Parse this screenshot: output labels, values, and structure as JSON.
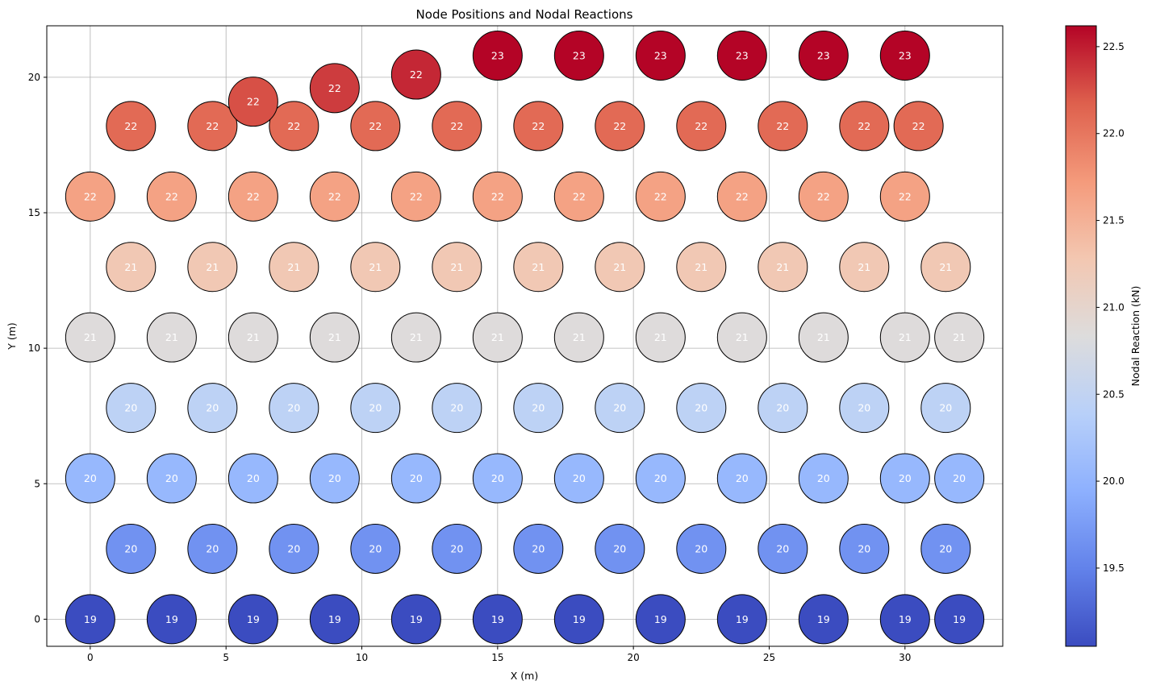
{
  "chart_data": {
    "type": "scatter",
    "title": "Node Positions and Nodal Reactions",
    "xlabel": "X (m)",
    "ylabel": "Y (m)",
    "xlim": [
      -1.6,
      33.6
    ],
    "ylim": [
      -1.0,
      21.9
    ],
    "xticks": [
      0,
      5,
      10,
      15,
      20,
      25,
      30
    ],
    "yticks": [
      0,
      5,
      10,
      15,
      20
    ],
    "grid": true,
    "colorbar": {
      "label": "Nodal Reaction (kN)",
      "range": [
        19.05,
        22.62
      ],
      "ticks": [
        "19.5",
        "20.0",
        "20.5",
        "21.0",
        "21.5",
        "22.0",
        "22.5"
      ],
      "tick_values": [
        19.5,
        20.0,
        20.5,
        21.0,
        21.5,
        22.0,
        22.5
      ],
      "colormap": "coolwarm",
      "colors": [
        "#3b4cc0",
        "#6282ea",
        "#8db0fe",
        "#b8d0f9",
        "#dddcdc",
        "#f3c7b1",
        "#f49a7b",
        "#de604d",
        "#b40426"
      ]
    },
    "points": [
      {
        "x": 0,
        "y": 0,
        "value": 19.05,
        "label": "19"
      },
      {
        "x": 3,
        "y": 0,
        "value": 19.05,
        "label": "19"
      },
      {
        "x": 6,
        "y": 0,
        "value": 19.05,
        "label": "19"
      },
      {
        "x": 9,
        "y": 0,
        "value": 19.05,
        "label": "19"
      },
      {
        "x": 12,
        "y": 0,
        "value": 19.05,
        "label": "19"
      },
      {
        "x": 15,
        "y": 0,
        "value": 19.05,
        "label": "19"
      },
      {
        "x": 18,
        "y": 0,
        "value": 19.05,
        "label": "19"
      },
      {
        "x": 21,
        "y": 0,
        "value": 19.05,
        "label": "19"
      },
      {
        "x": 24,
        "y": 0,
        "value": 19.05,
        "label": "19"
      },
      {
        "x": 27,
        "y": 0,
        "value": 19.05,
        "label": "19"
      },
      {
        "x": 30,
        "y": 0,
        "value": 19.05,
        "label": "19"
      },
      {
        "x": 32,
        "y": 0,
        "value": 19.05,
        "label": "19"
      },
      {
        "x": 1.5,
        "y": 2.6,
        "value": 19.65,
        "label": "20"
      },
      {
        "x": 4.5,
        "y": 2.6,
        "value": 19.65,
        "label": "20"
      },
      {
        "x": 7.5,
        "y": 2.6,
        "value": 19.65,
        "label": "20"
      },
      {
        "x": 10.5,
        "y": 2.6,
        "value": 19.65,
        "label": "20"
      },
      {
        "x": 13.5,
        "y": 2.6,
        "value": 19.65,
        "label": "20"
      },
      {
        "x": 16.5,
        "y": 2.6,
        "value": 19.65,
        "label": "20"
      },
      {
        "x": 19.5,
        "y": 2.6,
        "value": 19.65,
        "label": "20"
      },
      {
        "x": 22.5,
        "y": 2.6,
        "value": 19.65,
        "label": "20"
      },
      {
        "x": 25.5,
        "y": 2.6,
        "value": 19.65,
        "label": "20"
      },
      {
        "x": 28.5,
        "y": 2.6,
        "value": 19.65,
        "label": "20"
      },
      {
        "x": 31.5,
        "y": 2.6,
        "value": 19.65,
        "label": "20"
      },
      {
        "x": 0,
        "y": 5.2,
        "value": 20.05,
        "label": "20"
      },
      {
        "x": 3,
        "y": 5.2,
        "value": 20.05,
        "label": "20"
      },
      {
        "x": 6,
        "y": 5.2,
        "value": 20.05,
        "label": "20"
      },
      {
        "x": 9,
        "y": 5.2,
        "value": 20.05,
        "label": "20"
      },
      {
        "x": 12,
        "y": 5.2,
        "value": 20.05,
        "label": "20"
      },
      {
        "x": 15,
        "y": 5.2,
        "value": 20.05,
        "label": "20"
      },
      {
        "x": 18,
        "y": 5.2,
        "value": 20.05,
        "label": "20"
      },
      {
        "x": 21,
        "y": 5.2,
        "value": 20.05,
        "label": "20"
      },
      {
        "x": 24,
        "y": 5.2,
        "value": 20.05,
        "label": "20"
      },
      {
        "x": 27,
        "y": 5.2,
        "value": 20.05,
        "label": "20"
      },
      {
        "x": 30,
        "y": 5.2,
        "value": 20.05,
        "label": "20"
      },
      {
        "x": 32,
        "y": 5.2,
        "value": 20.05,
        "label": "20"
      },
      {
        "x": 1.5,
        "y": 7.8,
        "value": 20.45,
        "label": "20"
      },
      {
        "x": 4.5,
        "y": 7.8,
        "value": 20.45,
        "label": "20"
      },
      {
        "x": 7.5,
        "y": 7.8,
        "value": 20.45,
        "label": "20"
      },
      {
        "x": 10.5,
        "y": 7.8,
        "value": 20.45,
        "label": "20"
      },
      {
        "x": 13.5,
        "y": 7.8,
        "value": 20.45,
        "label": "20"
      },
      {
        "x": 16.5,
        "y": 7.8,
        "value": 20.45,
        "label": "20"
      },
      {
        "x": 19.5,
        "y": 7.8,
        "value": 20.45,
        "label": "20"
      },
      {
        "x": 22.5,
        "y": 7.8,
        "value": 20.45,
        "label": "20"
      },
      {
        "x": 25.5,
        "y": 7.8,
        "value": 20.45,
        "label": "20"
      },
      {
        "x": 28.5,
        "y": 7.8,
        "value": 20.45,
        "label": "20"
      },
      {
        "x": 31.5,
        "y": 7.8,
        "value": 20.45,
        "label": "20"
      },
      {
        "x": 0,
        "y": 10.4,
        "value": 20.85,
        "label": "21"
      },
      {
        "x": 3,
        "y": 10.4,
        "value": 20.85,
        "label": "21"
      },
      {
        "x": 6,
        "y": 10.4,
        "value": 20.85,
        "label": "21"
      },
      {
        "x": 9,
        "y": 10.4,
        "value": 20.85,
        "label": "21"
      },
      {
        "x": 12,
        "y": 10.4,
        "value": 20.85,
        "label": "21"
      },
      {
        "x": 15,
        "y": 10.4,
        "value": 20.85,
        "label": "21"
      },
      {
        "x": 18,
        "y": 10.4,
        "value": 20.85,
        "label": "21"
      },
      {
        "x": 21,
        "y": 10.4,
        "value": 20.85,
        "label": "21"
      },
      {
        "x": 24,
        "y": 10.4,
        "value": 20.85,
        "label": "21"
      },
      {
        "x": 27,
        "y": 10.4,
        "value": 20.85,
        "label": "21"
      },
      {
        "x": 30,
        "y": 10.4,
        "value": 20.85,
        "label": "21"
      },
      {
        "x": 32,
        "y": 10.4,
        "value": 20.85,
        "label": "21"
      },
      {
        "x": 1.5,
        "y": 13.0,
        "value": 21.25,
        "label": "21"
      },
      {
        "x": 4.5,
        "y": 13.0,
        "value": 21.25,
        "label": "21"
      },
      {
        "x": 7.5,
        "y": 13.0,
        "value": 21.25,
        "label": "21"
      },
      {
        "x": 10.5,
        "y": 13.0,
        "value": 21.25,
        "label": "21"
      },
      {
        "x": 13.5,
        "y": 13.0,
        "value": 21.25,
        "label": "21"
      },
      {
        "x": 16.5,
        "y": 13.0,
        "value": 21.25,
        "label": "21"
      },
      {
        "x": 19.5,
        "y": 13.0,
        "value": 21.25,
        "label": "21"
      },
      {
        "x": 22.5,
        "y": 13.0,
        "value": 21.25,
        "label": "21"
      },
      {
        "x": 25.5,
        "y": 13.0,
        "value": 21.25,
        "label": "21"
      },
      {
        "x": 28.5,
        "y": 13.0,
        "value": 21.25,
        "label": "21"
      },
      {
        "x": 31.5,
        "y": 13.0,
        "value": 21.25,
        "label": "21"
      },
      {
        "x": 0,
        "y": 15.6,
        "value": 21.65,
        "label": "22"
      },
      {
        "x": 3,
        "y": 15.6,
        "value": 21.65,
        "label": "22"
      },
      {
        "x": 6,
        "y": 15.6,
        "value": 21.65,
        "label": "22"
      },
      {
        "x": 9,
        "y": 15.6,
        "value": 21.65,
        "label": "22"
      },
      {
        "x": 12,
        "y": 15.6,
        "value": 21.65,
        "label": "22"
      },
      {
        "x": 15,
        "y": 15.6,
        "value": 21.65,
        "label": "22"
      },
      {
        "x": 18,
        "y": 15.6,
        "value": 21.65,
        "label": "22"
      },
      {
        "x": 21,
        "y": 15.6,
        "value": 21.65,
        "label": "22"
      },
      {
        "x": 24,
        "y": 15.6,
        "value": 21.65,
        "label": "22"
      },
      {
        "x": 27,
        "y": 15.6,
        "value": 21.65,
        "label": "22"
      },
      {
        "x": 30,
        "y": 15.6,
        "value": 21.65,
        "label": "22"
      },
      {
        "x": 1.5,
        "y": 18.2,
        "value": 22.1,
        "label": "22"
      },
      {
        "x": 4.5,
        "y": 18.2,
        "value": 22.1,
        "label": "22"
      },
      {
        "x": 7.5,
        "y": 18.2,
        "value": 22.1,
        "label": "22"
      },
      {
        "x": 10.5,
        "y": 18.2,
        "value": 22.1,
        "label": "22"
      },
      {
        "x": 13.5,
        "y": 18.2,
        "value": 22.1,
        "label": "22"
      },
      {
        "x": 16.5,
        "y": 18.2,
        "value": 22.1,
        "label": "22"
      },
      {
        "x": 19.5,
        "y": 18.2,
        "value": 22.1,
        "label": "22"
      },
      {
        "x": 22.5,
        "y": 18.2,
        "value": 22.1,
        "label": "22"
      },
      {
        "x": 25.5,
        "y": 18.2,
        "value": 22.1,
        "label": "22"
      },
      {
        "x": 28.5,
        "y": 18.2,
        "value": 22.1,
        "label": "22"
      },
      {
        "x": 30.5,
        "y": 18.2,
        "value": 22.1,
        "label": "22"
      },
      {
        "x": 6,
        "y": 19.1,
        "value": 22.25,
        "label": "22"
      },
      {
        "x": 9,
        "y": 19.6,
        "value": 22.35,
        "label": "22"
      },
      {
        "x": 12,
        "y": 20.1,
        "value": 22.45,
        "label": "22"
      },
      {
        "x": 15,
        "y": 20.8,
        "value": 22.62,
        "label": "23"
      },
      {
        "x": 18,
        "y": 20.8,
        "value": 22.62,
        "label": "23"
      },
      {
        "x": 21,
        "y": 20.8,
        "value": 22.62,
        "label": "23"
      },
      {
        "x": 24,
        "y": 20.8,
        "value": 22.62,
        "label": "23"
      },
      {
        "x": 27,
        "y": 20.8,
        "value": 22.62,
        "label": "23"
      },
      {
        "x": 30,
        "y": 20.8,
        "value": 22.62,
        "label": "23"
      }
    ]
  }
}
